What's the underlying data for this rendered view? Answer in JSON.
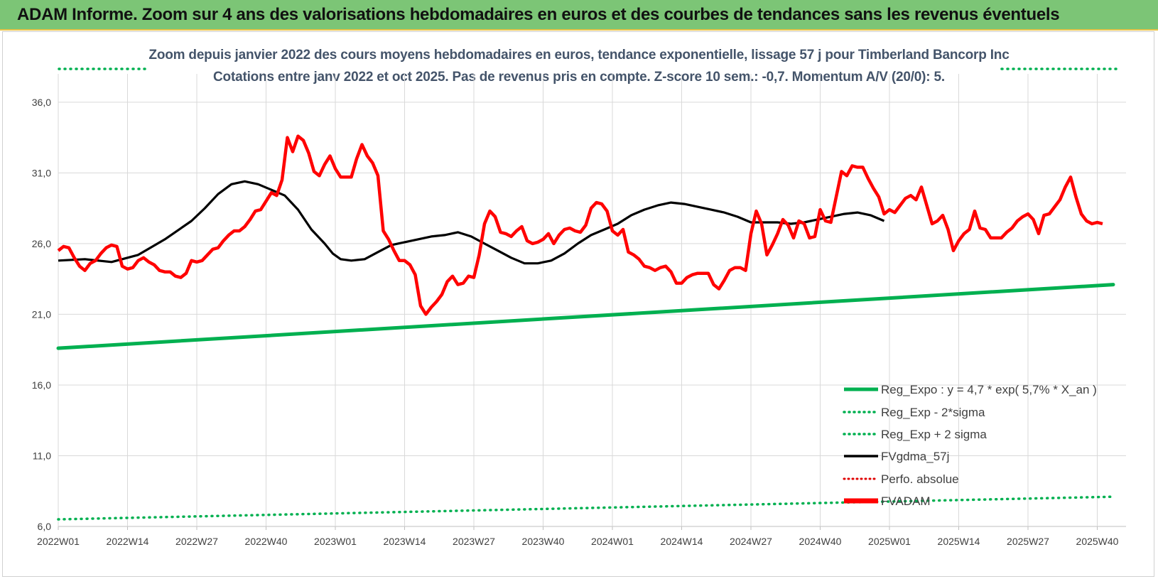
{
  "banner": {
    "title": "ADAM Informe. Zoom sur 4 ans des valorisations hebdomadaires en euros et des courbes de tendances sans les revenus éventuels"
  },
  "chart_data": {
    "type": "line",
    "title": "Zoom depuis janvier 2022 des cours moyens hebdomadaires en euros, tendance exponentielle, lissage 57 j pour Timberland Bancorp Inc",
    "subtitle": "Cotations entre janv 2022 et oct 2025. Pas de revenus pris en compte. Z-score 10 sem.: -0,7.  Momentum A/V (20/0): 5.",
    "xlabel": "",
    "ylabel": "",
    "ylim": [
      6,
      38
    ],
    "yticks": [
      6.0,
      11.0,
      16.0,
      21.0,
      26.0,
      31.0,
      36.0
    ],
    "ytick_labels": [
      "6,0",
      "11,0",
      "16,0",
      "21,0",
      "26,0",
      "31,0",
      "36,0"
    ],
    "x_tick_labels": [
      "2022W01",
      "2022W14",
      "2022W27",
      "2022W40",
      "2023W01",
      "2023W14",
      "2023W27",
      "2023W40",
      "2024W01",
      "2024W14",
      "2024W27",
      "2024W40",
      "2025W01",
      "2025W14",
      "2025W27",
      "2025W40"
    ],
    "weeks_per_tick": 13,
    "n_weeks": 199,
    "grid": "vertical and horizontal",
    "legend_position": "bottom-right",
    "colors": {
      "reg_expo": "#00b050",
      "reg_bands": "#00b050",
      "fvgdma": "#000000",
      "perfo": "#e00000",
      "fvadam": "#ff0000",
      "grid": "#d9d9d9"
    },
    "series": [
      {
        "name": "Reg_Expo : y = 4,7 * exp( 5,7% *  X_an )",
        "style": "solid-thick",
        "color": "#00b050",
        "points": [
          [
            0,
            18.6
          ],
          [
            198,
            23.1
          ]
        ]
      },
      {
        "name": "Reg_Exp - 2*sigma",
        "style": "dotted",
        "color": "#00b050",
        "points": [
          [
            0,
            6.5
          ],
          [
            198,
            8.1
          ]
        ]
      },
      {
        "name": "Reg_Exp + 2 sigma",
        "style": "dotted",
        "color": "#00b050",
        "points": [
          [
            0,
            38.7
          ],
          [
            7,
            38.8
          ]
        ],
        "note_visible": "partial"
      },
      {
        "name": "FVgdma_57j",
        "style": "solid",
        "color": "#000000",
        "points": [
          [
            0,
            24.8
          ],
          [
            10,
            24.9
          ],
          [
            20,
            24.7
          ],
          [
            30,
            25.2
          ],
          [
            40,
            26.3
          ],
          [
            50,
            27.6
          ],
          [
            55,
            28.5
          ],
          [
            60,
            29.5
          ],
          [
            65,
            30.2
          ],
          [
            70,
            30.4
          ],
          [
            75,
            30.2
          ],
          [
            80,
            29.8
          ],
          [
            85,
            29.4
          ],
          [
            90,
            28.4
          ],
          [
            95,
            27.0
          ],
          [
            100,
            26.0
          ],
          [
            103,
            25.3
          ],
          [
            106,
            24.9
          ],
          [
            110,
            24.8
          ],
          [
            115,
            24.9
          ],
          [
            120,
            25.4
          ],
          [
            125,
            25.9
          ],
          [
            130,
            26.1
          ],
          [
            135,
            26.3
          ],
          [
            140,
            26.5
          ],
          [
            145,
            26.6
          ],
          [
            150,
            26.8
          ],
          [
            155,
            26.5
          ],
          [
            160,
            26.0
          ],
          [
            165,
            25.5
          ],
          [
            170,
            25.0
          ],
          [
            175,
            24.6
          ],
          [
            180,
            24.6
          ],
          [
            185,
            24.8
          ],
          [
            190,
            25.3
          ],
          [
            195,
            26.0
          ],
          [
            200,
            26.6
          ],
          [
            205,
            27.0
          ],
          [
            210,
            27.4
          ],
          [
            215,
            28.0
          ],
          [
            220,
            28.4
          ],
          [
            225,
            28.7
          ],
          [
            230,
            28.9
          ],
          [
            235,
            28.8
          ],
          [
            240,
            28.6
          ],
          [
            245,
            28.4
          ],
          [
            250,
            28.2
          ],
          [
            255,
            27.9
          ],
          [
            260,
            27.5
          ],
          [
            265,
            27.5
          ],
          [
            270,
            27.5
          ],
          [
            275,
            27.4
          ],
          [
            280,
            27.5
          ],
          [
            285,
            27.7
          ],
          [
            290,
            27.9
          ],
          [
            295,
            28.1
          ],
          [
            300,
            28.2
          ],
          [
            305,
            28.0
          ],
          [
            310,
            27.6
          ]
        ]
      },
      {
        "name": "Perfo. absolue",
        "style": "dotted",
        "color": "#e00000",
        "points": []
      },
      {
        "name": "FVADAM",
        "style": "solid-thick",
        "color": "#ff0000",
        "points": [
          [
            0,
            25.5
          ],
          [
            2,
            25.8
          ],
          [
            4,
            25.7
          ],
          [
            6,
            25.0
          ],
          [
            8,
            24.4
          ],
          [
            10,
            24.1
          ],
          [
            12,
            24.6
          ],
          [
            14,
            24.8
          ],
          [
            16,
            25.3
          ],
          [
            18,
            25.7
          ],
          [
            20,
            25.9
          ],
          [
            22,
            25.8
          ],
          [
            24,
            24.4
          ],
          [
            26,
            24.2
          ],
          [
            28,
            24.3
          ],
          [
            30,
            24.8
          ],
          [
            32,
            25.0
          ],
          [
            34,
            24.7
          ],
          [
            36,
            24.5
          ],
          [
            38,
            24.1
          ],
          [
            40,
            24.0
          ],
          [
            42,
            24.0
          ],
          [
            44,
            23.7
          ],
          [
            46,
            23.6
          ],
          [
            48,
            23.9
          ],
          [
            50,
            24.8
          ],
          [
            52,
            24.7
          ],
          [
            54,
            24.8
          ],
          [
            56,
            25.2
          ],
          [
            58,
            25.6
          ],
          [
            60,
            25.7
          ],
          [
            62,
            26.2
          ],
          [
            64,
            26.6
          ],
          [
            66,
            26.9
          ],
          [
            68,
            26.9
          ],
          [
            70,
            27.2
          ],
          [
            72,
            27.7
          ],
          [
            74,
            28.3
          ],
          [
            76,
            28.4
          ],
          [
            78,
            29.0
          ],
          [
            80,
            29.6
          ],
          [
            82,
            29.4
          ],
          [
            84,
            30.5
          ],
          [
            86,
            33.5
          ],
          [
            88,
            32.5
          ],
          [
            90,
            33.6
          ],
          [
            92,
            33.3
          ],
          [
            94,
            32.4
          ],
          [
            96,
            31.1
          ],
          [
            98,
            30.8
          ],
          [
            100,
            31.6
          ],
          [
            102,
            32.2
          ],
          [
            104,
            31.3
          ],
          [
            106,
            30.7
          ],
          [
            108,
            30.7
          ],
          [
            110,
            30.7
          ],
          [
            112,
            32.0
          ],
          [
            114,
            33.0
          ],
          [
            116,
            32.2
          ],
          [
            118,
            31.7
          ],
          [
            120,
            30.8
          ],
          [
            122,
            26.9
          ],
          [
            124,
            26.3
          ],
          [
            126,
            25.5
          ],
          [
            128,
            24.8
          ],
          [
            130,
            24.8
          ],
          [
            132,
            24.5
          ],
          [
            134,
            23.8
          ],
          [
            136,
            21.6
          ],
          [
            138,
            21.0
          ],
          [
            140,
            21.5
          ],
          [
            142,
            21.9
          ],
          [
            144,
            22.4
          ],
          [
            146,
            23.3
          ],
          [
            148,
            23.7
          ],
          [
            150,
            23.1
          ],
          [
            152,
            23.2
          ],
          [
            154,
            23.7
          ],
          [
            156,
            23.6
          ],
          [
            158,
            25.2
          ],
          [
            160,
            27.4
          ],
          [
            162,
            28.3
          ],
          [
            164,
            27.9
          ],
          [
            166,
            26.8
          ],
          [
            168,
            26.7
          ],
          [
            170,
            26.5
          ],
          [
            172,
            26.9
          ],
          [
            174,
            27.2
          ],
          [
            176,
            26.2
          ],
          [
            178,
            26.0
          ],
          [
            180,
            26.1
          ],
          [
            182,
            26.3
          ],
          [
            184,
            26.7
          ],
          [
            186,
            26.0
          ],
          [
            188,
            26.6
          ],
          [
            190,
            27.0
          ],
          [
            192,
            27.1
          ],
          [
            194,
            26.9
          ],
          [
            196,
            26.8
          ],
          [
            198,
            27.3
          ],
          [
            200,
            28.5
          ],
          [
            202,
            28.9
          ],
          [
            204,
            28.8
          ],
          [
            206,
            28.3
          ],
          [
            208,
            26.9
          ],
          [
            210,
            26.6
          ],
          [
            212,
            27.0
          ],
          [
            214,
            25.4
          ],
          [
            216,
            25.2
          ],
          [
            218,
            24.9
          ],
          [
            220,
            24.4
          ],
          [
            222,
            24.3
          ],
          [
            224,
            24.1
          ],
          [
            226,
            24.3
          ],
          [
            228,
            24.4
          ],
          [
            230,
            24.0
          ],
          [
            232,
            23.2
          ],
          [
            234,
            23.2
          ],
          [
            236,
            23.6
          ],
          [
            238,
            23.8
          ],
          [
            240,
            23.9
          ],
          [
            242,
            23.9
          ],
          [
            244,
            23.9
          ],
          [
            246,
            23.1
          ],
          [
            248,
            22.8
          ],
          [
            250,
            23.4
          ],
          [
            252,
            24.1
          ],
          [
            254,
            24.3
          ],
          [
            256,
            24.3
          ],
          [
            258,
            24.1
          ],
          [
            260,
            26.7
          ],
          [
            262,
            28.3
          ],
          [
            264,
            27.4
          ],
          [
            266,
            25.2
          ],
          [
            268,
            25.9
          ],
          [
            270,
            26.7
          ],
          [
            272,
            27.7
          ],
          [
            274,
            27.3
          ],
          [
            276,
            26.4
          ],
          [
            278,
            27.6
          ],
          [
            280,
            27.4
          ],
          [
            282,
            26.4
          ],
          [
            284,
            26.5
          ],
          [
            286,
            28.4
          ],
          [
            288,
            27.6
          ],
          [
            290,
            27.5
          ],
          [
            292,
            29.3
          ],
          [
            294,
            31.1
          ],
          [
            296,
            30.8
          ],
          [
            298,
            31.5
          ],
          [
            300,
            31.4
          ],
          [
            302,
            31.4
          ],
          [
            304,
            30.6
          ],
          [
            306,
            29.9
          ],
          [
            308,
            29.3
          ],
          [
            310,
            28.1
          ],
          [
            312,
            28.4
          ],
          [
            314,
            28.2
          ],
          [
            316,
            28.7
          ],
          [
            318,
            29.2
          ],
          [
            320,
            29.4
          ],
          [
            322,
            29.1
          ],
          [
            324,
            30.0
          ],
          [
            326,
            28.7
          ],
          [
            328,
            27.4
          ],
          [
            330,
            27.6
          ],
          [
            332,
            28.0
          ],
          [
            334,
            27.0
          ],
          [
            336,
            25.5
          ],
          [
            338,
            26.2
          ],
          [
            340,
            26.7
          ],
          [
            342,
            27.0
          ],
          [
            344,
            28.3
          ],
          [
            346,
            27.1
          ],
          [
            348,
            27.0
          ],
          [
            350,
            26.4
          ],
          [
            352,
            26.4
          ],
          [
            354,
            26.4
          ],
          [
            356,
            26.8
          ],
          [
            358,
            27.1
          ],
          [
            360,
            27.6
          ],
          [
            362,
            27.9
          ],
          [
            364,
            28.1
          ],
          [
            366,
            27.7
          ],
          [
            368,
            26.7
          ],
          [
            370,
            28.0
          ],
          [
            372,
            28.1
          ],
          [
            374,
            28.6
          ],
          [
            376,
            29.1
          ],
          [
            378,
            30.0
          ],
          [
            380,
            30.7
          ],
          [
            382,
            29.3
          ],
          [
            384,
            28.1
          ],
          [
            386,
            27.6
          ],
          [
            388,
            27.4
          ],
          [
            390,
            27.5
          ],
          [
            392,
            27.4
          ]
        ]
      }
    ]
  }
}
